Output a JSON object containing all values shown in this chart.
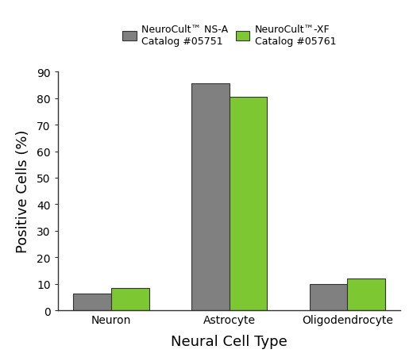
{
  "categories": [
    "Neuron",
    "Astrocyte",
    "Oligodendrocyte"
  ],
  "series": [
    {
      "label": "NeuroCult™ NS-A\nCatalog #05751",
      "color": "#808080",
      "edgecolor": "#333333",
      "values": [
        6.2,
        85.5,
        10.0
      ]
    },
    {
      "label": "NeuroCult™-XF\nCatalog #05761",
      "color": "#7dc832",
      "edgecolor": "#333333",
      "values": [
        8.5,
        80.5,
        12.0
      ]
    }
  ],
  "ylabel": "Positive Cells (%)",
  "xlabel": "Neural Cell Type",
  "ylim": [
    0,
    90
  ],
  "yticks": [
    0,
    10,
    20,
    30,
    40,
    50,
    60,
    70,
    80,
    90
  ],
  "bar_width": 0.32,
  "background_color": "#ffffff",
  "legend_fontsize": 9,
  "axis_label_fontsize": 13,
  "tick_fontsize": 10,
  "spine_color": "#333333"
}
